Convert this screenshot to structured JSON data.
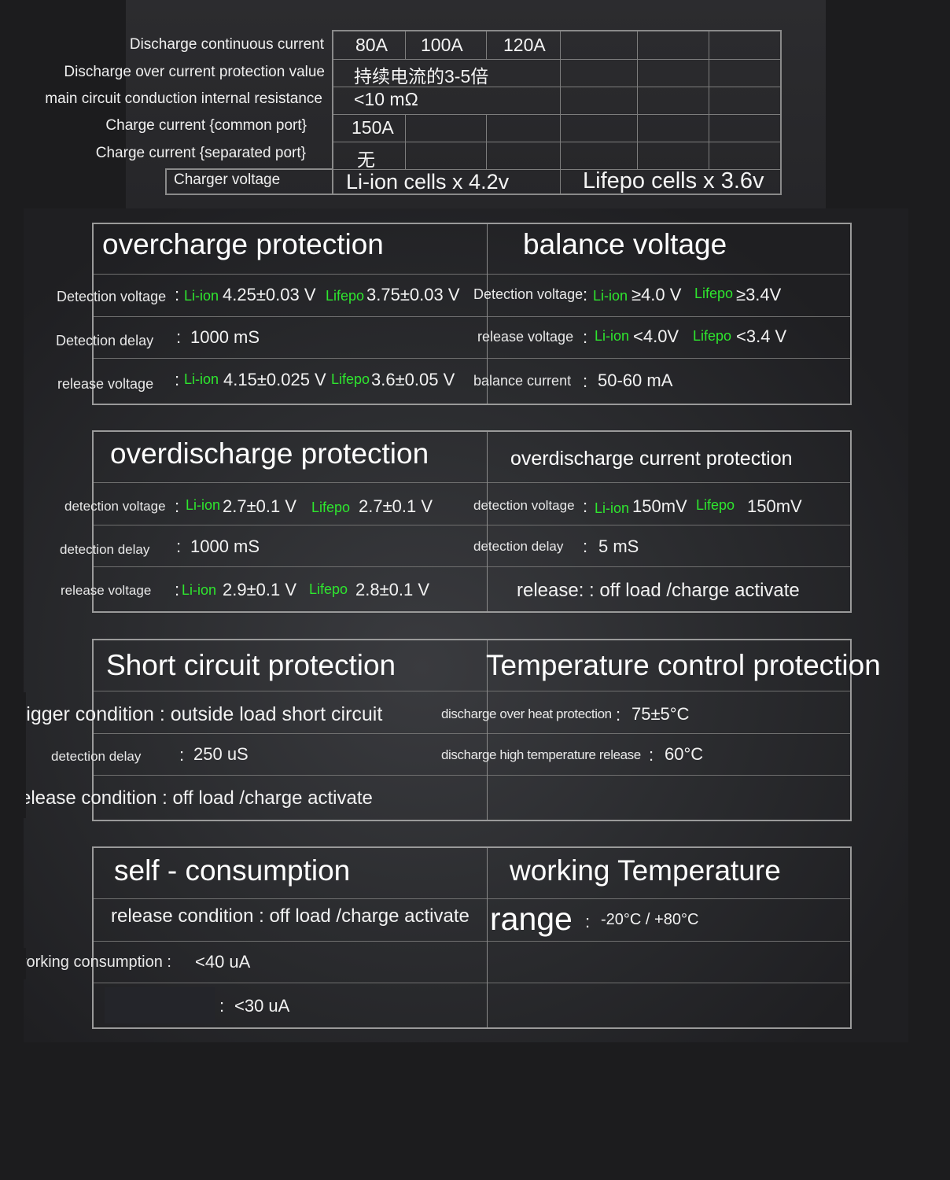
{
  "specs": {
    "rows": [
      {
        "label": "Discharge continuous current"
      },
      {
        "label": "Discharge over current protection value"
      },
      {
        "label": "main circuit conduction internal resistance"
      },
      {
        "label": "Charge current {common port}"
      },
      {
        "label": "Charge current {separated port}"
      },
      {
        "label": "Charger voltage"
      }
    ],
    "current_80": "80A",
    "current_100": "100A",
    "current_120": "120A",
    "over_current": "持续电流的3-5倍",
    "resistance": "<10 mΩ",
    "charge_common": "150A",
    "charge_separated": "无",
    "charger_liion": "Li-ion cells x 4.2v",
    "charger_lifepo": "Lifepo cells x 3.6v"
  },
  "overcharge": {
    "title": "overcharge protection",
    "det_voltage_label": "Detection voltage",
    "det_voltage_liion": "4.25±0.03 V",
    "det_voltage_lifepo": "3.75±0.03 V",
    "det_delay_label": "Detection delay",
    "det_delay_value": "1000 mS",
    "release_label": "release voltage",
    "release_liion": "4.15±0.025 V",
    "release_lifepo": "3.6±0.05 V"
  },
  "balance": {
    "title": "balance voltage",
    "det_voltage_label": "Detection voltage",
    "det_liion": "≥4.0 V",
    "det_lifepo": "≥3.4V",
    "release_label": "release voltage",
    "release_liion": "<4.0V",
    "release_lifepo": "<3.4 V",
    "current_label": "balance  current",
    "current_value": "50-60 mA"
  },
  "overdischarge": {
    "title": "overdischarge protection",
    "det_voltage_label": "detection voltage",
    "det_liion": "2.7±0.1 V",
    "det_lifepo": "2.7±0.1 V",
    "det_delay_label": "detection delay",
    "det_delay_value": "1000 mS",
    "release_label": "release voltage",
    "release_liion": "2.9±0.1 V",
    "release_lifepo": "2.8±0.1 V"
  },
  "overdischarge_current": {
    "title": "overdischarge current protection",
    "det_voltage_label": "detection voltage",
    "det_liion": "150mV",
    "det_lifepo": "150mV",
    "det_delay_label": "detection delay",
    "det_delay_value": "5 mS",
    "release_text": "release: : off load /charge activate"
  },
  "short_circuit": {
    "title": "Short circuit protection",
    "trigger_text": "trigger condition : outside load short circuit",
    "delay_label": "detection delay",
    "delay_value": "250 uS",
    "release_text": "release condition  : off load /charge activate"
  },
  "temperature": {
    "title": "Temperature control protection",
    "overheat_label": "discharge over heat protection",
    "overheat_value": "75±5°C",
    "release_label": "discharge high temperature release",
    "release_value": "60°C"
  },
  "self_consumption": {
    "title": "self - consumption",
    "release_text": "release condition : off load /charge activate",
    "working_label": "working consumption :",
    "working_value": "<40 uA",
    "sleep_value": "<30 uA"
  },
  "working_temp": {
    "title": "working Temperature",
    "range_label": "range",
    "range_value": "-20°C  /  +80°C"
  },
  "chem": {
    "liion": "Li-ion",
    "lifepo": "Lifepo"
  },
  "colors": {
    "background": "#1c1c1e",
    "accent_green": "#2ee62e",
    "border": "#9a9a9a"
  }
}
